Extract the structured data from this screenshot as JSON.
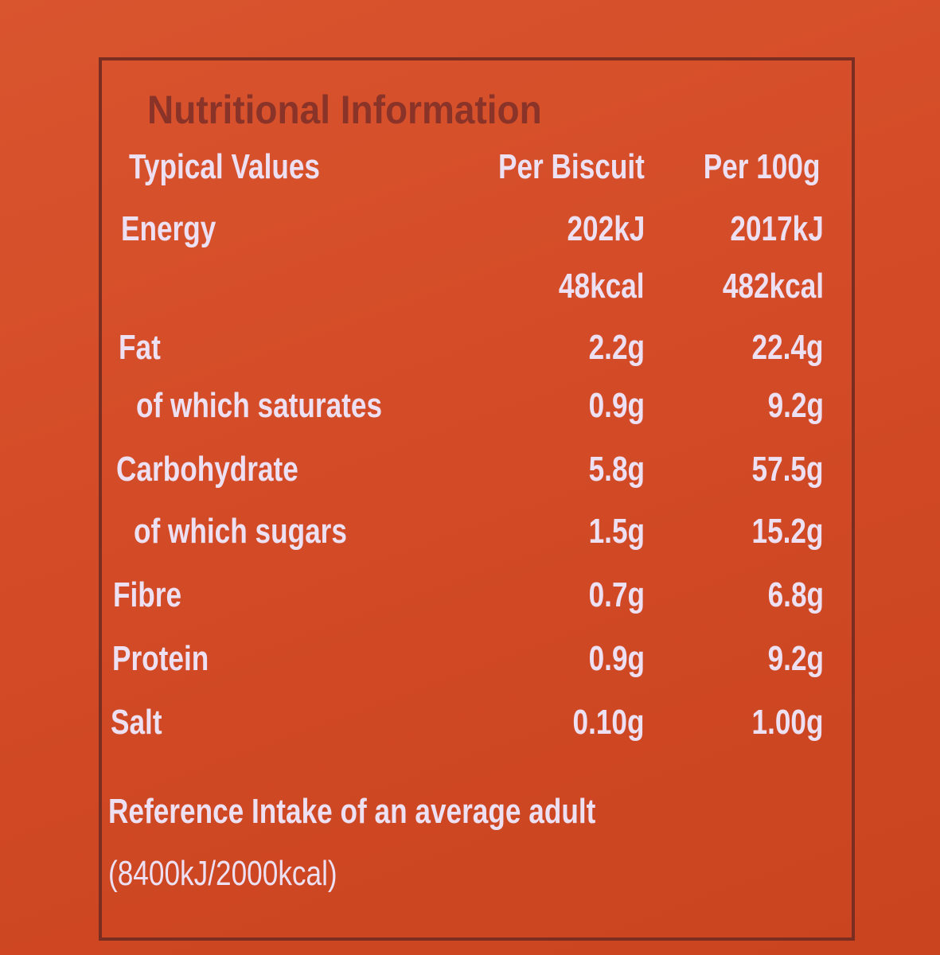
{
  "title": "Nutritional Information",
  "table": {
    "header": [
      "Typical Values",
      "Per Biscuit",
      "Per 100g"
    ],
    "rows": [
      [
        "Energy",
        "202kJ",
        "2017kJ"
      ],
      [
        null,
        "48kcal",
        "482kcal"
      ],
      [
        "Fat",
        "2.2g",
        "22.4g"
      ],
      [
        "of which saturates",
        "0.9g",
        "9.2g"
      ],
      [
        "Carbohydrate",
        "5.8g",
        "57.5g"
      ],
      [
        "of which sugars",
        "1.5g",
        "15.2g"
      ],
      [
        "Fibre",
        "0.7g",
        "6.8g"
      ],
      [
        "Protein",
        "0.9g",
        "9.2g"
      ],
      [
        "Salt",
        "0.10g",
        "1.00g"
      ]
    ]
  },
  "footer": [
    "Reference Intake of an average adult",
    "(8400kJ/2000kcal)"
  ]
}
